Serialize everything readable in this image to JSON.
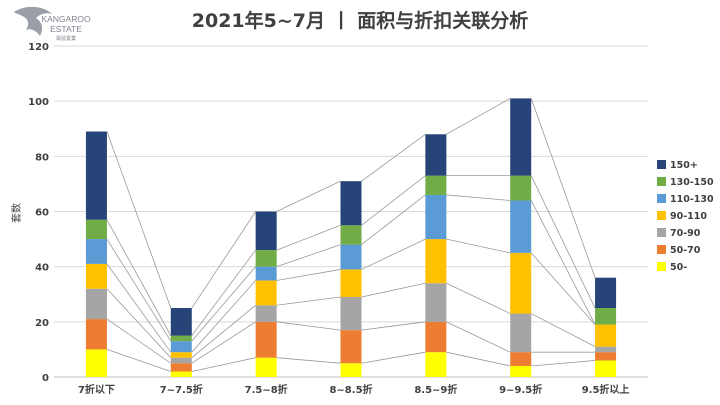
{
  "logo": {
    "brand_line1": "KANGAROO",
    "brand_line2": "ESTATE",
    "brand_cn": "袋鼠置業"
  },
  "chart_data": {
    "type": "bar",
    "stacked": true,
    "title": "2021年5~7月 丨 面积与折扣关联分析",
    "xlabel": "",
    "ylabel": "套数",
    "ylim": [
      0,
      120
    ],
    "yticks": [
      0,
      20,
      40,
      60,
      80,
      100,
      120
    ],
    "grid": true,
    "legend_position": "right",
    "categories": [
      "7折以下",
      "7~7.5折",
      "7.5~8折",
      "8~8.5折",
      "8.5~9折",
      "9~9.5折",
      "9.5折以上"
    ],
    "series": [
      {
        "name": "50-",
        "color": "#FFFF00",
        "values": [
          10,
          2,
          7,
          5,
          9,
          4,
          6
        ]
      },
      {
        "name": "50-70",
        "color": "#ED7D31",
        "values": [
          11,
          3,
          13,
          12,
          11,
          5,
          3
        ]
      },
      {
        "name": "70-90",
        "color": "#A5A5A5",
        "values": [
          11,
          2,
          6,
          12,
          14,
          14,
          2
        ]
      },
      {
        "name": "90-110",
        "color": "#FFC000",
        "values": [
          9,
          2,
          9,
          10,
          16,
          22,
          8
        ]
      },
      {
        "name": "110-130",
        "color": "#5B9BD5",
        "values": [
          9,
          4,
          5,
          9,
          16,
          19,
          0
        ]
      },
      {
        "name": "130-150",
        "color": "#70AD47",
        "values": [
          7,
          2,
          6,
          7,
          7,
          9,
          6
        ]
      },
      {
        "name": "150+",
        "color": "#264478",
        "values": [
          32,
          10,
          14,
          16,
          15,
          28,
          11
        ]
      }
    ]
  }
}
